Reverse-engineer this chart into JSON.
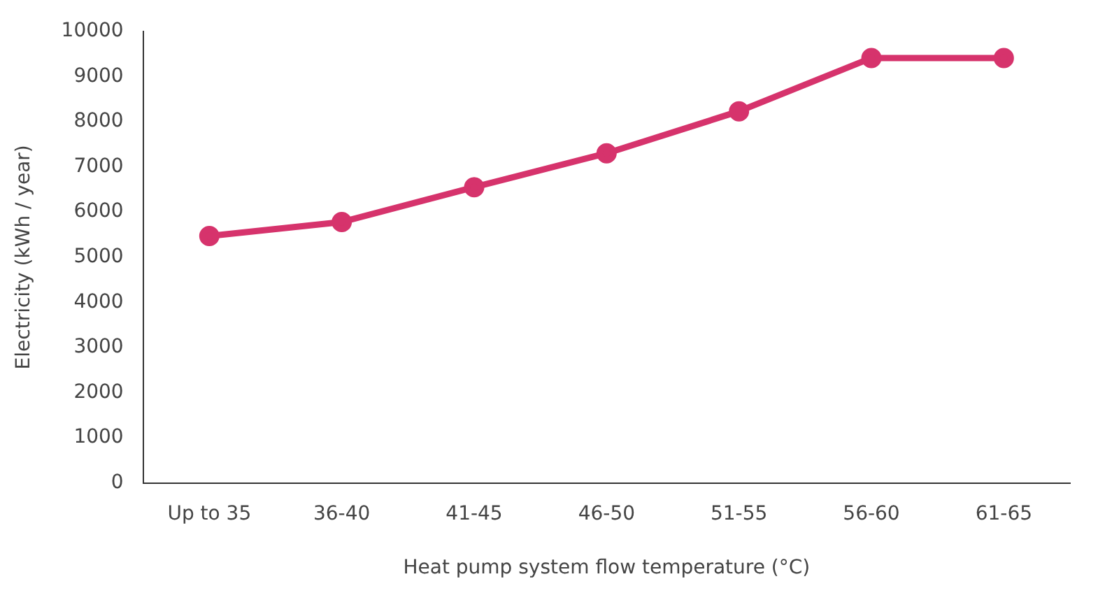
{
  "chart_data": {
    "type": "line",
    "xlabel": "Heat pump system flow temperature (°C)",
    "ylabel": "Electricity (kWh / year)",
    "categories": [
      "Up to 35",
      "36-40",
      "41-45",
      "46-50",
      "51-55",
      "56-60",
      "61-65"
    ],
    "series": [
      {
        "color": "#d6336c",
        "values": [
          5470,
          5780,
          6550,
          7300,
          8230,
          9410,
          9410
        ]
      }
    ],
    "ylim": [
      0,
      10000
    ],
    "yticks": [
      0,
      1000,
      2000,
      3000,
      4000,
      5000,
      6000,
      7000,
      8000,
      9000,
      10000
    ],
    "grid": false,
    "legend": false,
    "marker": "circle",
    "line_style": "solid"
  }
}
